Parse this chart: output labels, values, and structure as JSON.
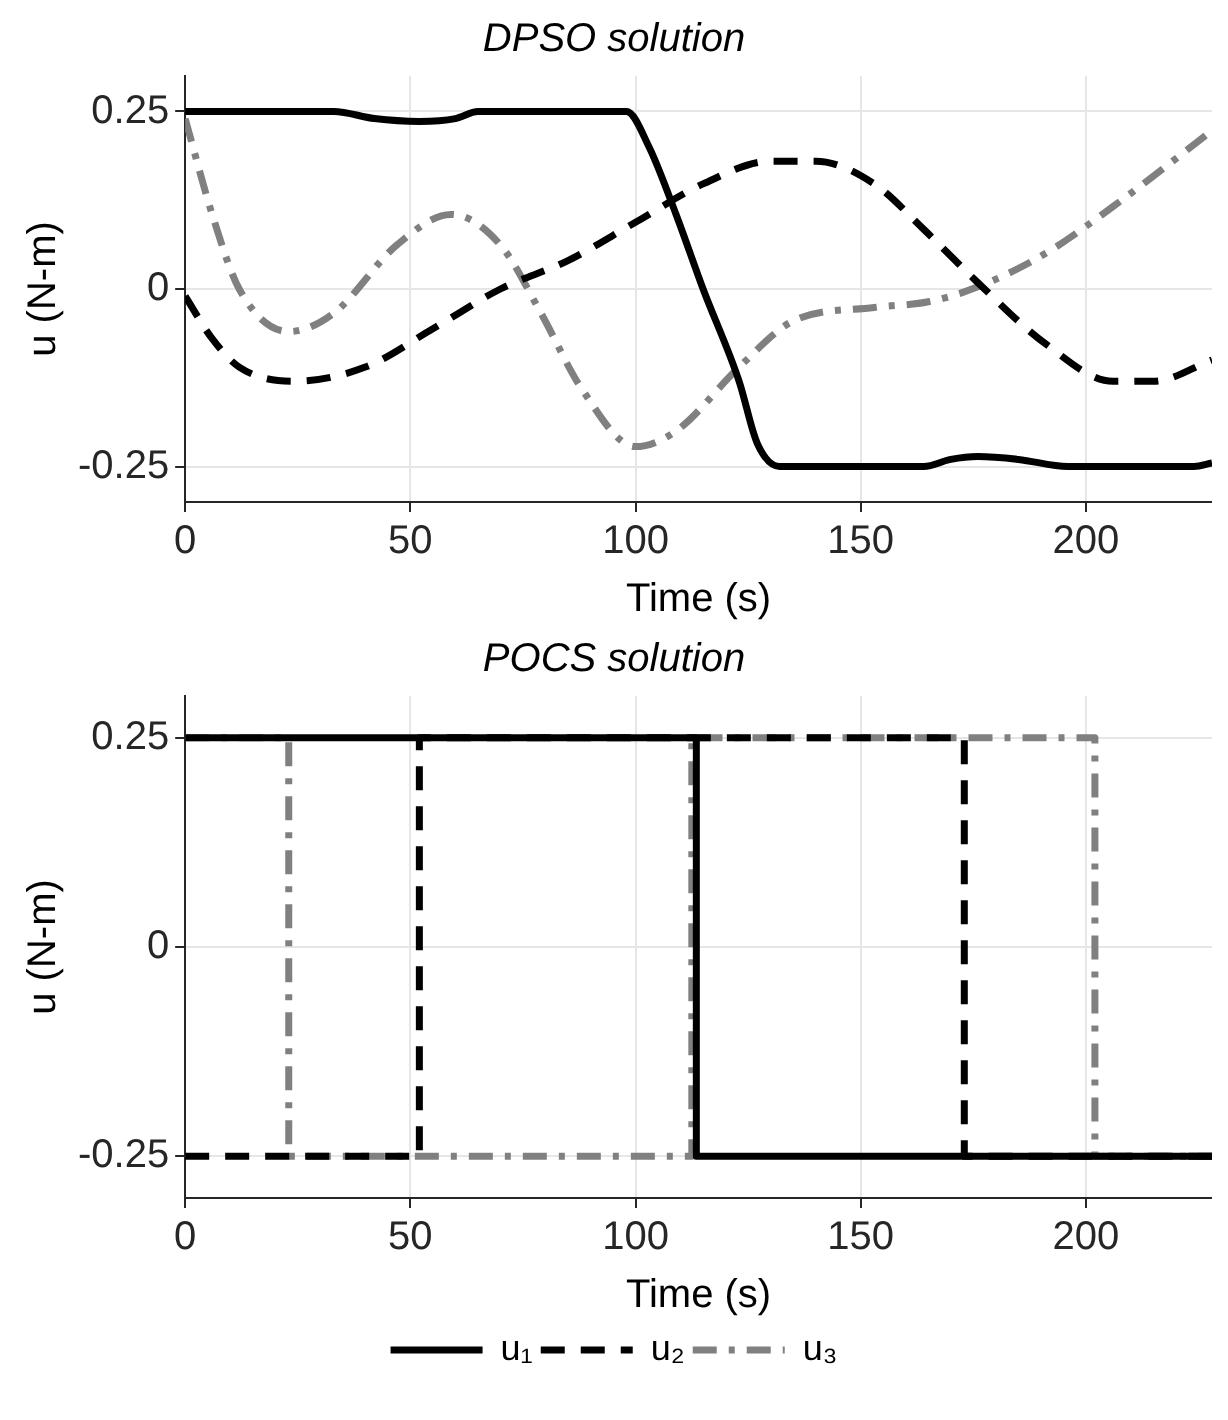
{
  "chart_data": [
    {
      "type": "line",
      "title": "DPSO solution",
      "xlabel": "Time (s)",
      "ylabel": "u (N-m)",
      "xlim": [
        0,
        228
      ],
      "xticks": [
        0,
        50,
        100,
        150,
        200
      ],
      "ylim": [
        -0.3,
        0.3
      ],
      "yticks": [
        -0.25,
        0,
        0.25
      ],
      "grid": true,
      "legend": false,
      "series": [
        {
          "color": "#000000",
          "line_style": "solid",
          "x": [
            0,
            33,
            42,
            52,
            60,
            65,
            98,
            103,
            109,
            115,
            123,
            127,
            132,
            164,
            170,
            176,
            185,
            196,
            224,
            228
          ],
          "values": [
            0.25,
            0.25,
            0.24,
            0.236,
            0.24,
            0.25,
            0.25,
            0.2,
            0.105,
            0,
            -0.13,
            -0.217,
            -0.25,
            -0.25,
            -0.24,
            -0.236,
            -0.24,
            -0.25,
            -0.25,
            -0.245
          ]
        },
        {
          "color": "#000000",
          "line_style": "dashed",
          "x": [
            0,
            6,
            12,
            24,
            40,
            55,
            70,
            85,
            100,
            115,
            130,
            140,
            153,
            164,
            176,
            191,
            206,
            215,
            228
          ],
          "values": [
            -0.01,
            -0.07,
            -0.11,
            -0.13,
            -0.11,
            -0.056,
            0,
            0.04,
            0.094,
            0.148,
            0.18,
            0.18,
            0.148,
            0.084,
            0.009,
            -0.077,
            -0.13,
            -0.13,
            -0.1
          ]
        },
        {
          "color": "#808080",
          "line_style": "dashdot",
          "x": [
            0,
            6,
            12,
            23,
            33,
            47,
            59,
            70,
            79,
            88,
            100,
            109,
            123,
            135,
            153,
            165,
            176,
            191,
            206,
            228
          ],
          "values": [
            0.24,
            0.105,
            0,
            -0.06,
            -0.034,
            0.062,
            0.105,
            0.062,
            -0.034,
            -0.14,
            -0.222,
            -0.2,
            -0.11,
            -0.045,
            -0.026,
            -0.018,
            0.003,
            0.05,
            0.116,
            0.223
          ]
        }
      ]
    },
    {
      "type": "step",
      "title": "POCS solution",
      "xlabel": "Time (s)",
      "ylabel": "u (N-m)",
      "xlim": [
        0,
        228
      ],
      "xticks": [
        0,
        50,
        100,
        150,
        200
      ],
      "ylim": [
        -0.3,
        0.3
      ],
      "yticks": [
        -0.25,
        0,
        0.25
      ],
      "grid": true,
      "legend": "bottom",
      "series": [
        {
          "name": "u₁",
          "color": "#000000",
          "line_style": "solid",
          "x": [
            0,
            113.5,
            228
          ],
          "values": [
            0.25,
            -0.25,
            -0.25
          ]
        },
        {
          "name": "u₂",
          "color": "#000000",
          "line_style": "dashed",
          "x": [
            0,
            52,
            173,
            228
          ],
          "values": [
            -0.25,
            0.25,
            -0.25,
            -0.25
          ]
        },
        {
          "name": "u₃",
          "color": "#808080",
          "line_style": "dashdot",
          "x": [
            0,
            23,
            112.5,
            202,
            228
          ],
          "values": [
            0.25,
            -0.25,
            0.25,
            -0.25,
            -0.25
          ]
        }
      ]
    }
  ]
}
